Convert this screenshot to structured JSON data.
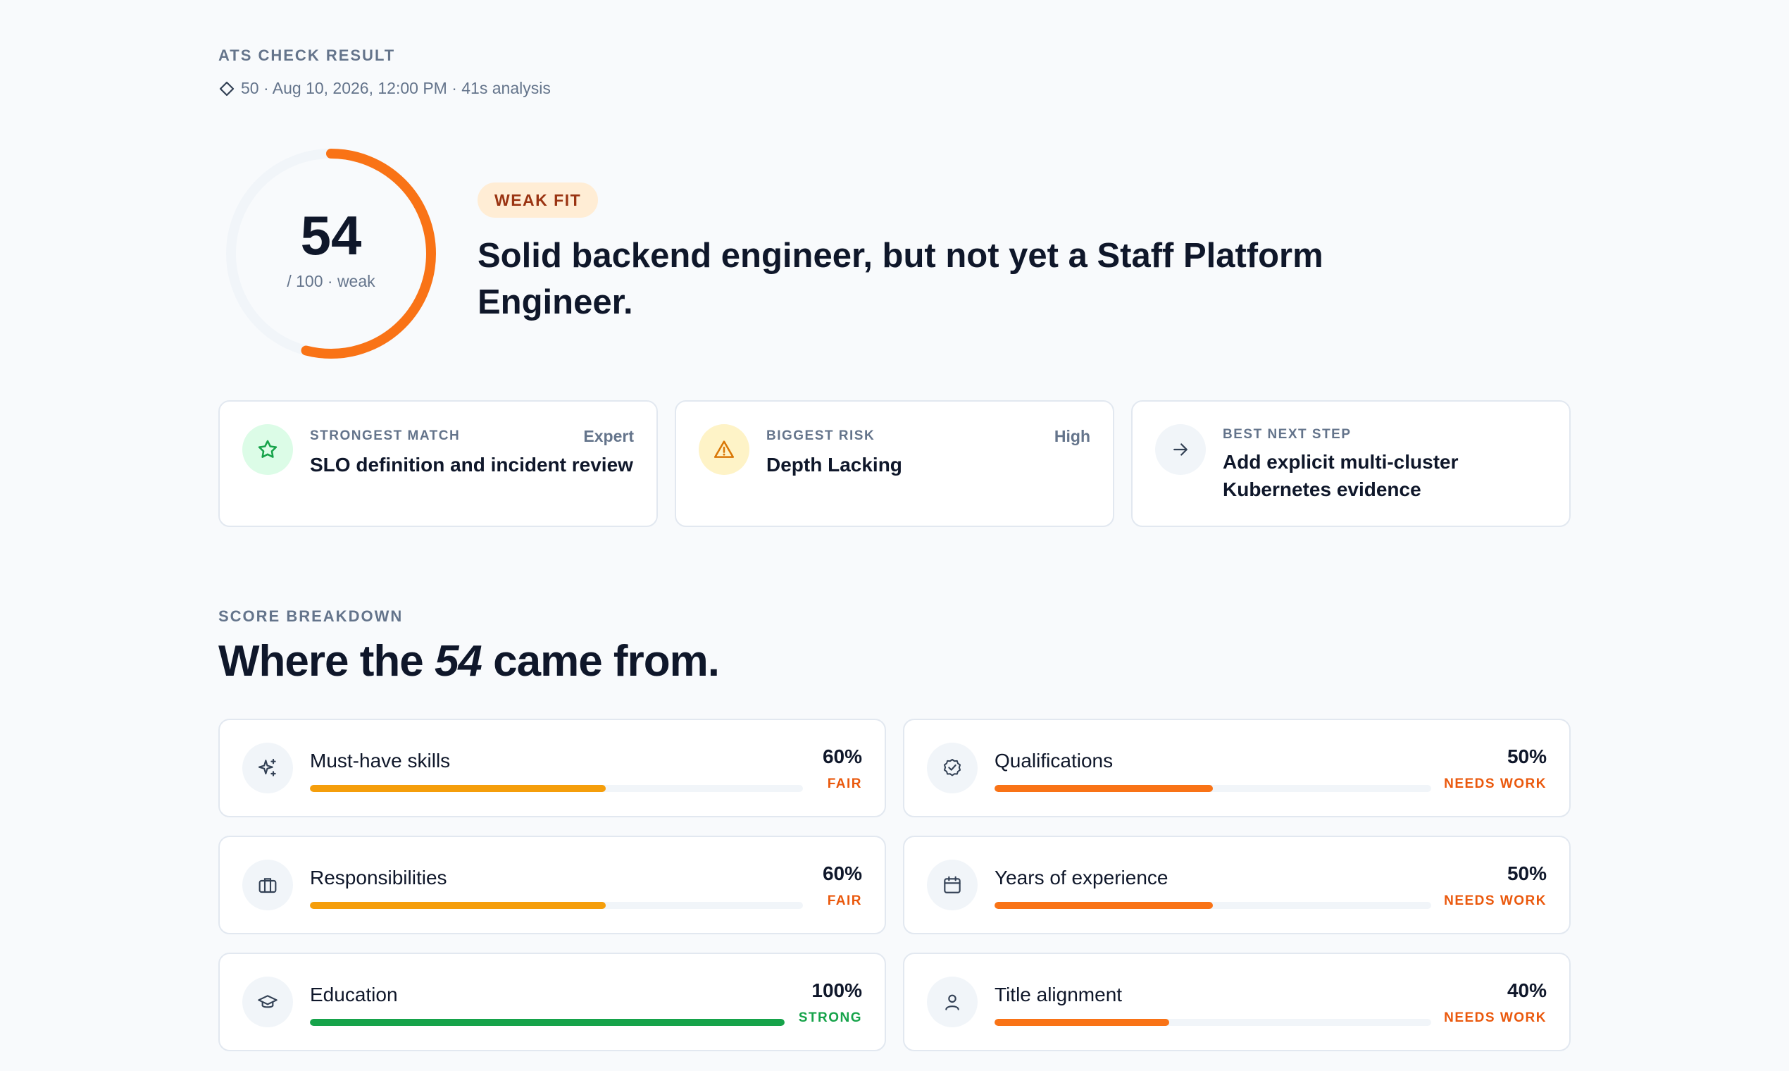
{
  "header": {
    "eyebrow": "ATS CHECK RESULT",
    "meta": "50 · Aug 10, 2026, 12:00 PM · 41s analysis",
    "meta_icon": "diamond-icon"
  },
  "score": {
    "value": "54",
    "max_label": "/ 100 · weak",
    "fraction": 0.54,
    "ring_color": "#f97316",
    "track_color": "#f1f5f9"
  },
  "verdict": {
    "badge": "WEAK FIT",
    "headline": "Solid backend engineer, but not yet a Staff Platform Engineer."
  },
  "insights": [
    {
      "icon": "star-icon",
      "icon_bg": "#dcfce7",
      "icon_color": "#16a34a",
      "label": "STRONGEST MATCH",
      "level": "Expert",
      "value": "SLO definition and incident review"
    },
    {
      "icon": "warning-icon",
      "icon_bg": "#fef3c7",
      "icon_color": "#d97706",
      "label": "BIGGEST RISK",
      "level": "High",
      "value": "Depth Lacking"
    },
    {
      "icon": "arrow-right-icon",
      "icon_bg": "#f1f5f9",
      "icon_color": "#334155",
      "label": "BEST NEXT STEP",
      "level": "",
      "value": "Add explicit multi-cluster Kubernetes evidence"
    }
  ],
  "breakdown": {
    "eyebrow": "SCORE BREAKDOWN",
    "title_prefix": "Where the ",
    "title_emph": "54",
    "title_suffix": " came from.",
    "items": [
      {
        "icon": "sparkles-icon",
        "label": "Must-have skills",
        "percent_label": "60%",
        "percent": 60,
        "status": "FAIR",
        "status_color": "#ea580c",
        "bar_color": "#f59e0b"
      },
      {
        "icon": "badge-check-icon",
        "label": "Qualifications",
        "percent_label": "50%",
        "percent": 50,
        "status": "NEEDS WORK",
        "status_color": "#ea580c",
        "bar_color": "#f97316"
      },
      {
        "icon": "briefcase-icon",
        "label": "Responsibilities",
        "percent_label": "60%",
        "percent": 60,
        "status": "FAIR",
        "status_color": "#ea580c",
        "bar_color": "#f59e0b"
      },
      {
        "icon": "calendar-icon",
        "label": "Years of experience",
        "percent_label": "50%",
        "percent": 50,
        "status": "NEEDS WORK",
        "status_color": "#ea580c",
        "bar_color": "#f97316"
      },
      {
        "icon": "graduation-cap-icon",
        "label": "Education",
        "percent_label": "100%",
        "percent": 100,
        "status": "STRONG",
        "status_color": "#16a34a",
        "bar_color": "#16a34a"
      },
      {
        "icon": "user-icon",
        "label": "Title alignment",
        "percent_label": "40%",
        "percent": 40,
        "status": "NEEDS WORK",
        "status_color": "#ea580c",
        "bar_color": "#f97316"
      }
    ]
  }
}
